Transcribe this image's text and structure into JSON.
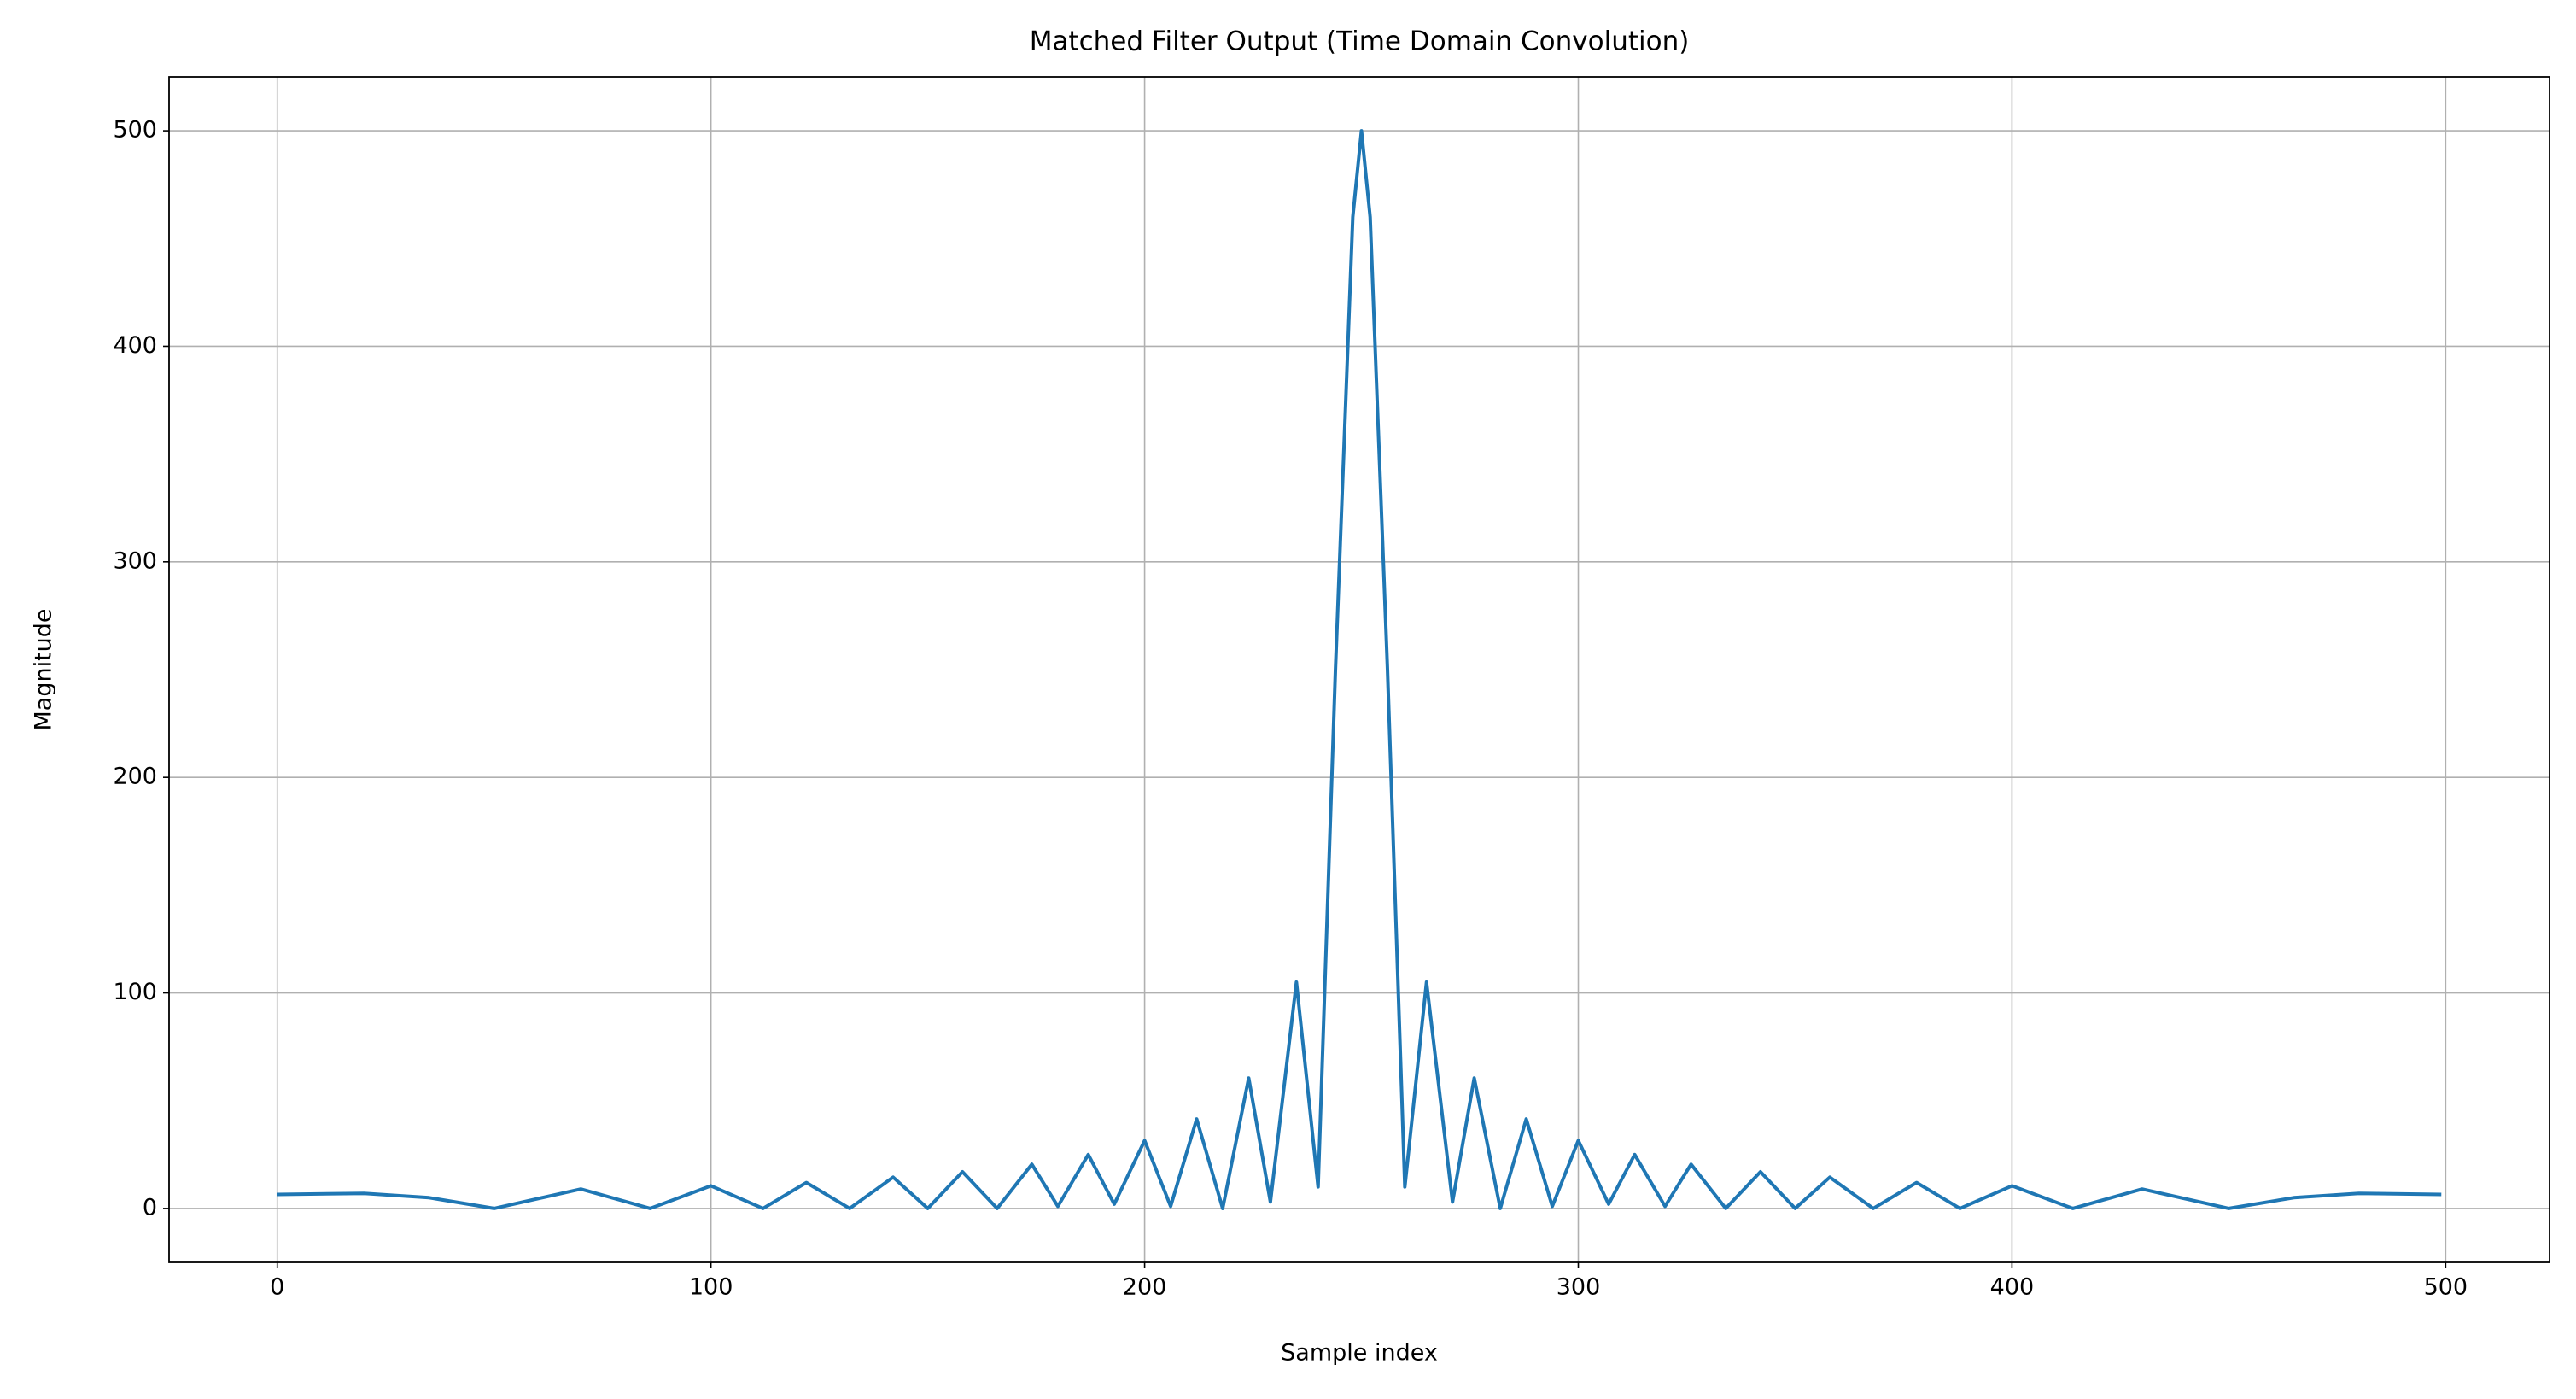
{
  "chart_data": {
    "type": "line",
    "title": "Matched Filter Output (Time Domain Convolution)",
    "x_label": "Sample index",
    "y_label": "Magnitude",
    "x": [
      0,
      20,
      35,
      50,
      70,
      86,
      100,
      112,
      122,
      132,
      142,
      150,
      158,
      166,
      174,
      180,
      187,
      193,
      200,
      206,
      212,
      218,
      224,
      229,
      235,
      240,
      244,
      248,
      250,
      252,
      256,
      260,
      265,
      271,
      276,
      282,
      288,
      294,
      300,
      307,
      313,
      320,
      326,
      334,
      342,
      350,
      358,
      368,
      378,
      388,
      400,
      414,
      430,
      450,
      465,
      480,
      499
    ],
    "series": [
      {
        "name": "Matched filter output",
        "color": "#1f77b4",
        "values": [
          6.5,
          7,
          5,
          0,
          9,
          0,
          10.5,
          0,
          12,
          0,
          14.5,
          0,
          17,
          0,
          20.5,
          1,
          25,
          2,
          31.5,
          1,
          41.5,
          0,
          60.5,
          3,
          105,
          10,
          250,
          460,
          500,
          460,
          250,
          10,
          105,
          3,
          60.5,
          0,
          41.5,
          1,
          31.5,
          2,
          25,
          1,
          20.5,
          0,
          17,
          0,
          14.5,
          0,
          12,
          0,
          10.5,
          0,
          9,
          0,
          5,
          7,
          6.5
        ]
      }
    ],
    "xlim": [
      -24.95,
      523.95
    ],
    "ylim": [
      -25,
      525
    ],
    "xticks": [
      0,
      100,
      200,
      300,
      400,
      500
    ],
    "yticks": [
      0,
      100,
      200,
      300,
      400,
      500
    ],
    "grid": true
  }
}
